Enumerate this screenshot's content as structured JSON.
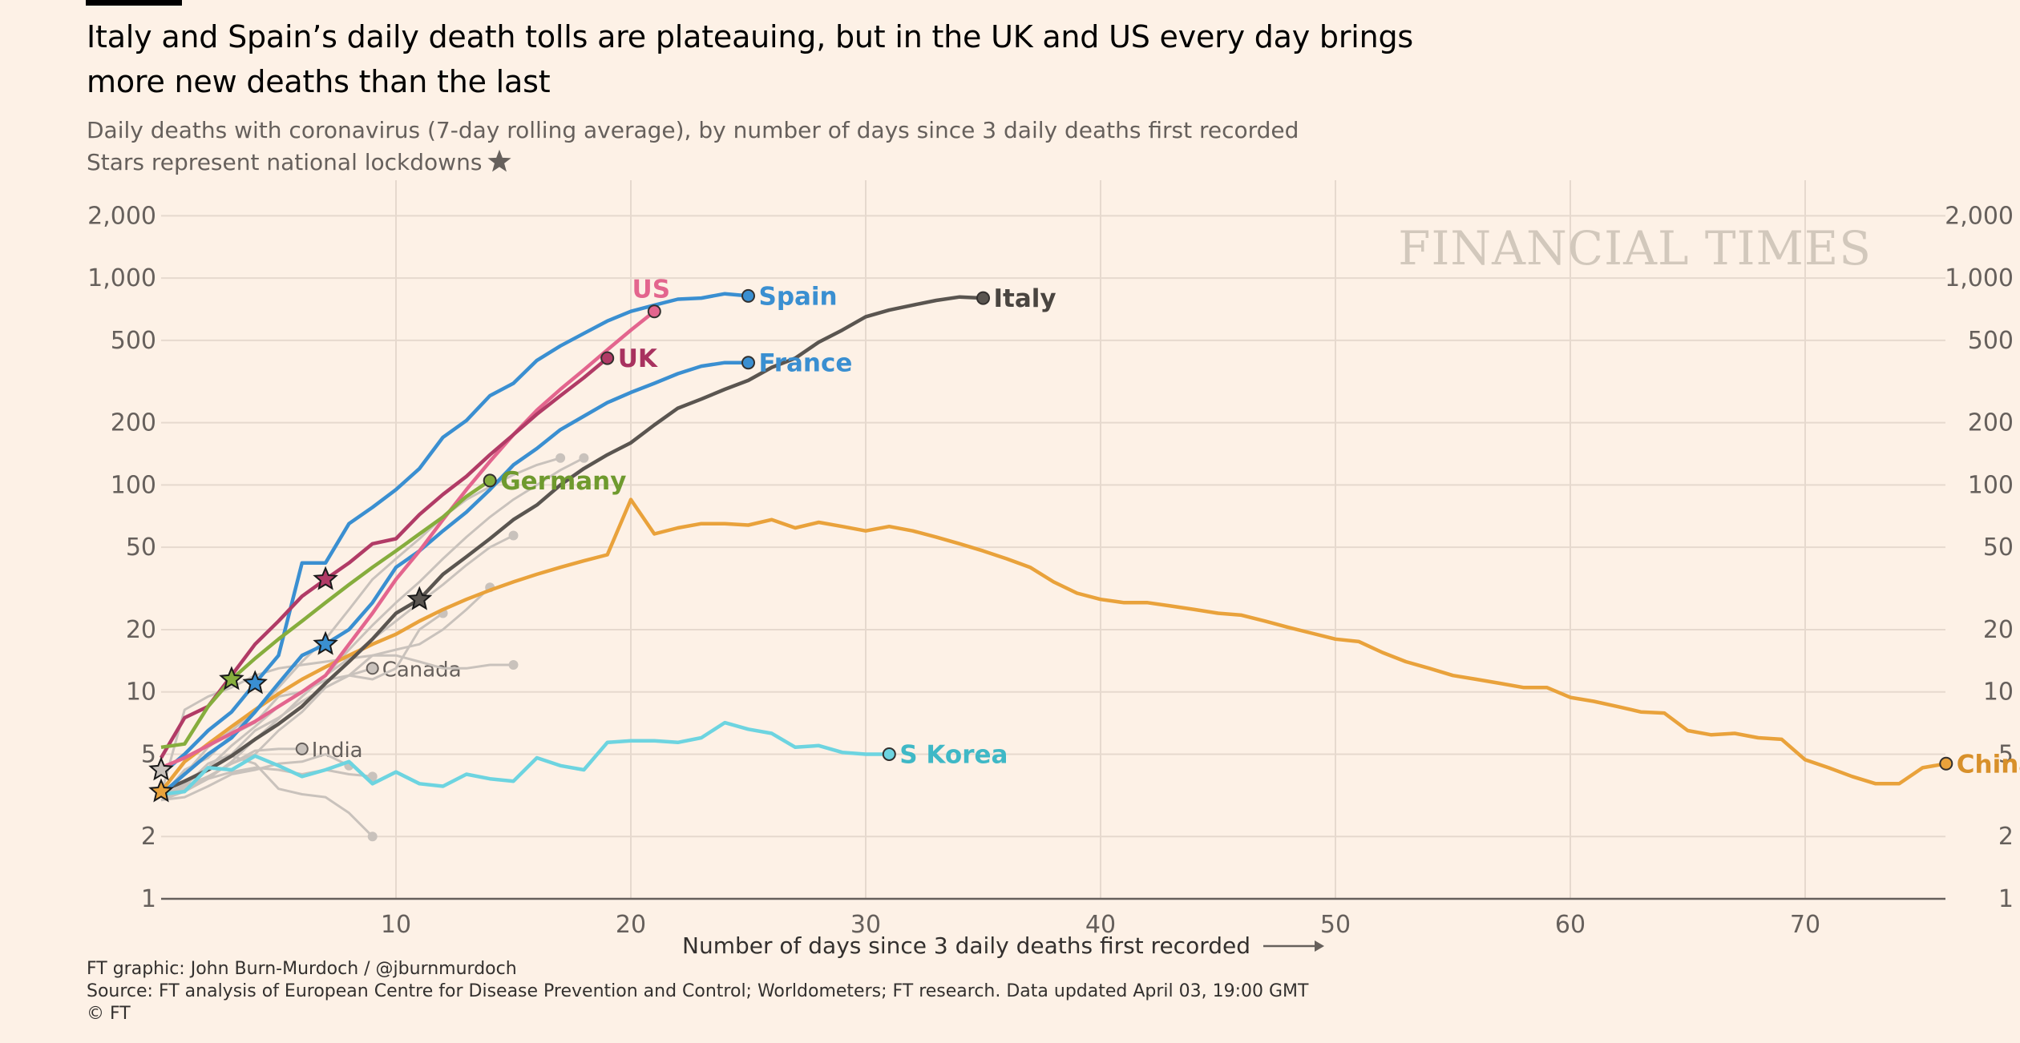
{
  "header": {
    "title": "Italy and Spain’s daily death tolls are plateauing, but in the UK and US every day brings more new deaths than the last",
    "subtitle_line1": "Daily deaths with coronavirus (7-day rolling average), by number of days since 3 daily deaths first recorded",
    "subtitle_line2": "Stars represent national lockdowns"
  },
  "watermark": "FINANCIAL TIMES",
  "footer": {
    "credit": "FT graphic: John Burn-Murdoch / @jburnmurdoch",
    "source": "Source: FT analysis of European Centre for Disease Prevention and Control; Worldometers; FT research. Data updated April 03, 19:00 GMT",
    "copyright": "© FT"
  },
  "colors": {
    "background": "#fdf1e6",
    "grid": "#e6d9ce",
    "axis": "#66605c",
    "grey_series": "#c9c2bc"
  },
  "chart_data": {
    "type": "line",
    "title": "Italy and Spain’s daily death tolls are plateauing, but in the UK and US every day brings more new deaths than the last",
    "xlabel": "Number of days since 3 daily deaths first recorded",
    "ylabel": "Daily deaths (7-day rolling average)",
    "y_scale": "log",
    "ylim": [
      1,
      2000
    ],
    "xlim": [
      0,
      76
    ],
    "x_ticks": [
      10,
      20,
      30,
      40,
      50,
      60,
      70
    ],
    "x_tick_labels": [
      "10",
      "20",
      "30",
      "40",
      "50",
      "60",
      "70"
    ],
    "y_ticks": [
      1,
      2,
      5,
      10,
      20,
      50,
      100,
      200,
      500,
      1000,
      2000
    ],
    "y_tick_labels": [
      "1",
      "2",
      "5",
      "10",
      "20",
      "50",
      "100",
      "200",
      "500",
      "1,000",
      "2,000"
    ],
    "grid": true,
    "legend": "direct labels at line ends",
    "series": [
      {
        "name": "China",
        "color": "#e9a23b",
        "label_color": "#d8902a",
        "label": "China",
        "label_pos": "right",
        "values": [
          3.3,
          4.6,
          5.6,
          6.8,
          8.2,
          9.8,
          11.5,
          13.2,
          15,
          17,
          19,
          22,
          25,
          28,
          31,
          34,
          37,
          40,
          43,
          46,
          85,
          58,
          62,
          65,
          65,
          64,
          68,
          62,
          66,
          63,
          60,
          63,
          60,
          56,
          52,
          48,
          44,
          40,
          34,
          30,
          28,
          27,
          27,
          26,
          25,
          24,
          23.5,
          22,
          20.5,
          19.2,
          18,
          17.5,
          15.5,
          14,
          13,
          12,
          11.5,
          11,
          10.5,
          10.5,
          9.4,
          9,
          8.5,
          8,
          7.9,
          6.5,
          6.2,
          6.3,
          6,
          5.9,
          4.7,
          4.3,
          3.9,
          3.6,
          3.6,
          4.3,
          4.5
        ],
        "star_day": 0
      },
      {
        "name": "Italy",
        "color": "#5a5550",
        "label_color": "#4a4540",
        "label": "Italy",
        "label_pos": "right",
        "values": [
          3.3,
          3.7,
          4.2,
          4.9,
          5.9,
          7,
          8.5,
          11,
          14,
          18,
          24,
          28,
          37,
          45,
          55,
          68,
          80,
          100,
          120,
          140,
          160,
          195,
          235,
          260,
          290,
          320,
          370,
          410,
          490,
          560,
          650,
          700,
          740,
          780,
          810,
          800
        ],
        "star_day": 11
      },
      {
        "name": "Spain",
        "color": "#3a8fd1",
        "label_color": "#3a8fd1",
        "label": "Spain",
        "label_pos": "right",
        "values": [
          4,
          5,
          6.5,
          8,
          11,
          15,
          42,
          42,
          65,
          78,
          95,
          120,
          170,
          205,
          270,
          310,
          400,
          470,
          540,
          620,
          690,
          740,
          790,
          800,
          840,
          820
        ],
        "star_day": 4
      },
      {
        "name": "France",
        "color": "#3a8fd1",
        "label_color": "#3a8fd1",
        "label": "France",
        "label_pos": "right",
        "values": [
          3.2,
          4,
          5,
          6,
          8,
          11,
          15,
          17,
          20,
          27,
          40,
          48,
          60,
          74,
          95,
          125,
          150,
          185,
          215,
          250,
          280,
          310,
          345,
          375,
          390,
          390
        ],
        "star_day": 7
      },
      {
        "name": "US",
        "color": "#e3658e",
        "label_color": "#e3658e",
        "label": "US",
        "label_pos": "top",
        "values": [
          4.3,
          4.8,
          5.5,
          6.3,
          7.2,
          8.5,
          10,
          12,
          17,
          24,
          35,
          48,
          68,
          95,
          130,
          175,
          230,
          290,
          360,
          450,
          560,
          690
        ],
        "star_day": null
      },
      {
        "name": "UK",
        "color": "#b13b66",
        "label_color": "#a8325f",
        "label": "UK",
        "label_pos": "right",
        "values": [
          4.8,
          7.5,
          8.5,
          12,
          17,
          22,
          29,
          35,
          42,
          52,
          55,
          72,
          90,
          110,
          140,
          175,
          220,
          270,
          330,
          410
        ],
        "star_day": 7
      },
      {
        "name": "Germany",
        "color": "#86ad3d",
        "label_color": "#6f9a2e",
        "label": "Germany",
        "label_pos": "right",
        "values": [
          5.4,
          5.6,
          8.5,
          11.5,
          14.5,
          18,
          22,
          27,
          33,
          40,
          48,
          58,
          70,
          88,
          105
        ],
        "star_day": 3
      },
      {
        "name": "S Korea",
        "color": "#6dd4e0",
        "label_color": "#3fb8c6",
        "label": "S Korea",
        "label_pos": "right",
        "values": [
          3.2,
          3.3,
          4.3,
          4.2,
          4.9,
          4.4,
          3.9,
          4.2,
          4.6,
          3.6,
          4.1,
          3.6,
          3.5,
          4,
          3.8,
          3.7,
          4.8,
          4.4,
          4.2,
          5.7,
          5.8,
          5.8,
          5.7,
          6,
          7.1,
          6.6,
          6.3,
          5.4,
          5.5,
          5.1,
          5,
          5
        ],
        "star_day": null
      }
    ],
    "grey_series": [
      {
        "name": "Canada",
        "label": "Canada",
        "values": [
          3.2,
          3.5,
          4.5,
          5,
          6.5,
          7.5,
          9,
          10.5,
          12,
          13
        ]
      },
      {
        "name": "India",
        "label": "India",
        "values": [
          3.1,
          3.3,
          3.9,
          4.5,
          5.2,
          5.3,
          5.3
        ]
      },
      {
        "name": "grey-a",
        "label": "",
        "values": [
          3.2,
          8.2,
          9.5,
          10.5,
          12,
          13,
          13.5,
          14,
          14.5,
          15,
          15,
          14,
          13,
          13,
          13.5,
          13.5
        ]
      },
      {
        "name": "grey-b",
        "label": "",
        "values": [
          3.1,
          3.6,
          4.3,
          5.5,
          6.8,
          8.5,
          10,
          12,
          14.5,
          18,
          22,
          27,
          33,
          41,
          50,
          57
        ]
      },
      {
        "name": "grey-c",
        "label": "",
        "values": [
          3.2,
          4,
          5.4,
          6.5,
          8,
          10.5,
          14,
          18,
          25,
          35,
          44,
          55,
          70,
          85,
          98,
          112,
          125,
          135
        ]
      },
      {
        "name": "grey-d",
        "label": "",
        "values": [
          3,
          3.3,
          3.8,
          4.6,
          5.9,
          7.4,
          9.5,
          12,
          16,
          21,
          27,
          34,
          44,
          56,
          70,
          85,
          100,
          118,
          135
        ]
      },
      {
        "name": "grey-e",
        "label": "",
        "values": [
          3.2,
          3.5,
          3.9,
          4.5,
          5,
          6.5,
          8,
          10.5,
          12,
          15,
          16,
          17,
          20,
          25,
          32
        ]
      },
      {
        "name": "grey-f",
        "label": "",
        "values": [
          3.1,
          4.2,
          4.8,
          6.2,
          7.1,
          9.5,
          10,
          11.4,
          12,
          11.5,
          13,
          20,
          24
        ]
      },
      {
        "name": "grey-g",
        "label": "",
        "values": [
          3.3,
          3.7,
          4.3,
          4.9,
          4.5,
          3.4,
          3.2,
          3.1,
          2.6,
          2
        ]
      },
      {
        "name": "grey-h",
        "label": "",
        "values": [
          3,
          3.1,
          3.5,
          4,
          4.2,
          4.5,
          4.6,
          5,
          4.4
        ]
      },
      {
        "name": "grey-i",
        "label": "",
        "values": [
          3.2,
          3.4,
          3.8,
          4.1,
          4.3,
          4.2,
          4,
          4.2,
          4,
          3.9
        ]
      }
    ]
  }
}
